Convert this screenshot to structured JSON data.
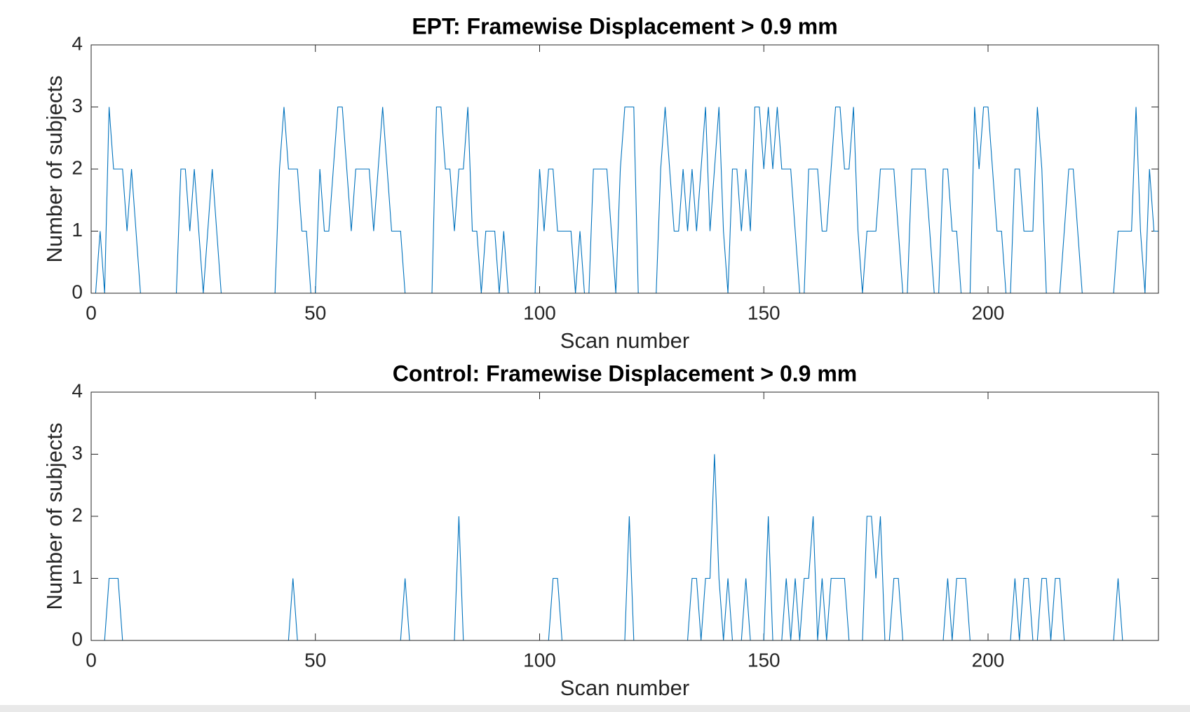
{
  "chart_data": [
    {
      "type": "line",
      "title": "EPT: Framewise Displacement > 0.9 mm",
      "x_label": "Scan number",
      "y_label": "Number of subjects",
      "xlim": [
        0,
        238
      ],
      "ylim": [
        0,
        4
      ],
      "xticks": [
        0,
        50,
        100,
        150,
        200
      ],
      "yticks": [
        0,
        1,
        2,
        3,
        4
      ],
      "grid": false,
      "x": [
        1,
        2,
        3,
        4,
        5,
        6,
        7,
        8,
        9,
        10,
        11,
        12,
        13,
        14,
        15,
        16,
        17,
        18,
        19,
        20,
        21,
        22,
        23,
        24,
        25,
        26,
        27,
        28,
        29,
        30,
        31,
        32,
        33,
        34,
        35,
        36,
        37,
        38,
        39,
        40,
        41,
        42,
        43,
        44,
        45,
        46,
        47,
        48,
        49,
        50,
        51,
        52,
        53,
        54,
        55,
        56,
        57,
        58,
        59,
        60,
        61,
        62,
        63,
        64,
        65,
        66,
        67,
        68,
        69,
        70,
        71,
        72,
        73,
        74,
        75,
        76,
        77,
        78,
        79,
        80,
        81,
        82,
        83,
        84,
        85,
        86,
        87,
        88,
        89,
        90,
        91,
        92,
        93,
        94,
        95,
        96,
        97,
        98,
        99,
        100,
        101,
        102,
        103,
        104,
        105,
        106,
        107,
        108,
        109,
        110,
        111,
        112,
        113,
        114,
        115,
        116,
        117,
        118,
        119,
        120,
        121,
        122,
        123,
        124,
        125,
        126,
        127,
        128,
        129,
        130,
        131,
        132,
        133,
        134,
        135,
        136,
        137,
        138,
        139,
        140,
        141,
        142,
        143,
        144,
        145,
        146,
        147,
        148,
        149,
        150,
        151,
        152,
        153,
        154,
        155,
        156,
        157,
        158,
        159,
        160,
        161,
        162,
        163,
        164,
        165,
        166,
        167,
        168,
        169,
        170,
        171,
        172,
        173,
        174,
        175,
        176,
        177,
        178,
        179,
        180,
        181,
        182,
        183,
        184,
        185,
        186,
        187,
        188,
        189,
        190,
        191,
        192,
        193,
        194,
        195,
        196,
        197,
        198,
        199,
        200,
        201,
        202,
        203,
        204,
        205,
        206,
        207,
        208,
        209,
        210,
        211,
        212,
        213,
        214,
        215,
        216,
        217,
        218,
        219,
        220,
        221,
        222,
        223,
        224,
        225,
        226,
        227,
        228,
        229,
        230,
        231,
        232,
        233,
        234,
        235,
        236,
        237,
        238
      ],
      "series": [
        {
          "color": "#0072bd",
          "values": [
            0,
            1,
            0,
            3,
            2,
            2,
            2,
            1,
            2,
            1,
            0,
            0,
            0,
            0,
            0,
            0,
            0,
            0,
            0,
            2,
            2,
            1,
            2,
            1,
            0,
            1,
            2,
            1,
            0,
            0,
            0,
            0,
            0,
            0,
            0,
            0,
            0,
            0,
            0,
            0,
            0,
            2,
            3,
            2,
            2,
            2,
            1,
            1,
            0,
            0,
            2,
            1,
            1,
            2,
            3,
            3,
            2,
            1,
            2,
            2,
            2,
            2,
            1,
            2,
            3,
            2,
            1,
            1,
            1,
            0,
            0,
            0,
            0,
            0,
            0,
            0,
            3,
            3,
            2,
            2,
            1,
            2,
            2,
            3,
            1,
            1,
            0,
            1,
            1,
            1,
            0,
            1,
            0,
            0,
            0,
            0,
            0,
            0,
            0,
            2,
            1,
            2,
            2,
            1,
            1,
            1,
            1,
            0,
            1,
            0,
            0,
            2,
            2,
            2,
            2,
            1,
            0,
            2,
            3,
            3,
            3,
            0,
            0,
            0,
            0,
            0,
            2,
            3,
            2,
            1,
            1,
            2,
            1,
            2,
            1,
            2,
            3,
            1,
            2,
            3,
            1,
            0,
            2,
            2,
            1,
            2,
            1,
            3,
            3,
            2,
            3,
            2,
            3,
            2,
            2,
            2,
            1,
            0,
            0,
            2,
            2,
            2,
            1,
            1,
            2,
            3,
            3,
            2,
            2,
            3,
            1,
            0,
            1,
            1,
            1,
            2,
            2,
            2,
            2,
            1,
            0,
            0,
            2,
            2,
            2,
            2,
            1,
            0,
            0,
            2,
            2,
            1,
            1,
            0,
            0,
            0,
            3,
            2,
            3,
            3,
            2,
            1,
            1,
            0,
            0,
            2,
            2,
            1,
            1,
            1,
            3,
            2,
            0,
            0,
            0,
            0,
            1,
            2,
            2,
            1,
            0,
            0,
            0,
            0,
            0,
            0,
            0,
            0,
            1,
            1,
            1,
            1,
            3,
            1,
            0,
            2,
            1,
            1
          ]
        }
      ]
    },
    {
      "type": "line",
      "title": "Control: Framewise Displacement > 0.9 mm",
      "x_label": "Scan number",
      "y_label": "Number of subjects",
      "xlim": [
        0,
        238
      ],
      "ylim": [
        0,
        4
      ],
      "xticks": [
        0,
        50,
        100,
        150,
        200
      ],
      "yticks": [
        0,
        1,
        2,
        3,
        4
      ],
      "grid": false,
      "x": [
        1,
        2,
        3,
        4,
        5,
        6,
        7,
        8,
        9,
        10,
        11,
        12,
        13,
        14,
        15,
        16,
        17,
        18,
        19,
        20,
        21,
        22,
        23,
        24,
        25,
        26,
        27,
        28,
        29,
        30,
        31,
        32,
        33,
        34,
        35,
        36,
        37,
        38,
        39,
        40,
        41,
        42,
        43,
        44,
        45,
        46,
        47,
        48,
        49,
        50,
        51,
        52,
        53,
        54,
        55,
        56,
        57,
        58,
        59,
        60,
        61,
        62,
        63,
        64,
        65,
        66,
        67,
        68,
        69,
        70,
        71,
        72,
        73,
        74,
        75,
        76,
        77,
        78,
        79,
        80,
        81,
        82,
        83,
        84,
        85,
        86,
        87,
        88,
        89,
        90,
        91,
        92,
        93,
        94,
        95,
        96,
        97,
        98,
        99,
        100,
        101,
        102,
        103,
        104,
        105,
        106,
        107,
        108,
        109,
        110,
        111,
        112,
        113,
        114,
        115,
        116,
        117,
        118,
        119,
        120,
        121,
        122,
        123,
        124,
        125,
        126,
        127,
        128,
        129,
        130,
        131,
        132,
        133,
        134,
        135,
        136,
        137,
        138,
        139,
        140,
        141,
        142,
        143,
        144,
        145,
        146,
        147,
        148,
        149,
        150,
        151,
        152,
        153,
        154,
        155,
        156,
        157,
        158,
        159,
        160,
        161,
        162,
        163,
        164,
        165,
        166,
        167,
        168,
        169,
        170,
        171,
        172,
        173,
        174,
        175,
        176,
        177,
        178,
        179,
        180,
        181,
        182,
        183,
        184,
        185,
        186,
        187,
        188,
        189,
        190,
        191,
        192,
        193,
        194,
        195,
        196,
        197,
        198,
        199,
        200,
        201,
        202,
        203,
        204,
        205,
        206,
        207,
        208,
        209,
        210,
        211,
        212,
        213,
        214,
        215,
        216,
        217,
        218,
        219,
        220,
        221,
        222,
        223,
        224,
        225,
        226,
        227,
        228,
        229,
        230,
        231,
        232,
        233,
        234,
        235,
        236,
        237,
        238
      ],
      "series": [
        {
          "color": "#0072bd",
          "values": [
            0,
            0,
            0,
            1,
            1,
            1,
            0,
            0,
            0,
            0,
            0,
            0,
            0,
            0,
            0,
            0,
            0,
            0,
            0,
            0,
            0,
            0,
            0,
            0,
            0,
            0,
            0,
            0,
            0,
            0,
            0,
            0,
            0,
            0,
            0,
            0,
            0,
            0,
            0,
            0,
            0,
            0,
            0,
            0,
            1,
            0,
            0,
            0,
            0,
            0,
            0,
            0,
            0,
            0,
            0,
            0,
            0,
            0,
            0,
            0,
            0,
            0,
            0,
            0,
            0,
            0,
            0,
            0,
            0,
            1,
            0,
            0,
            0,
            0,
            0,
            0,
            0,
            0,
            0,
            0,
            0,
            2,
            0,
            0,
            0,
            0,
            0,
            0,
            0,
            0,
            0,
            0,
            0,
            0,
            0,
            0,
            0,
            0,
            0,
            0,
            0,
            0,
            1,
            1,
            0,
            0,
            0,
            0,
            0,
            0,
            0,
            0,
            0,
            0,
            0,
            0,
            0,
            0,
            0,
            2,
            0,
            0,
            0,
            0,
            0,
            0,
            0,
            0,
            0,
            0,
            0,
            0,
            0,
            1,
            1,
            0,
            1,
            1,
            3,
            1,
            0,
            1,
            0,
            0,
            0,
            1,
            0,
            0,
            0,
            0,
            2,
            0,
            0,
            0,
            1,
            0,
            1,
            0,
            1,
            1,
            2,
            0,
            1,
            0,
            1,
            1,
            1,
            1,
            0,
            0,
            0,
            0,
            2,
            2,
            1,
            2,
            0,
            0,
            1,
            1,
            0,
            0,
            0,
            0,
            0,
            0,
            0,
            0,
            0,
            0,
            1,
            0,
            1,
            1,
            1,
            0,
            0,
            0,
            0,
            0,
            0,
            0,
            0,
            0,
            0,
            1,
            0,
            1,
            1,
            0,
            0,
            1,
            1,
            0,
            1,
            1,
            0,
            0,
            0,
            0,
            0,
            0,
            0,
            0,
            0,
            0,
            0,
            0,
            1,
            0,
            0,
            0,
            0,
            0,
            0,
            0,
            0,
            0
          ]
        }
      ]
    }
  ]
}
